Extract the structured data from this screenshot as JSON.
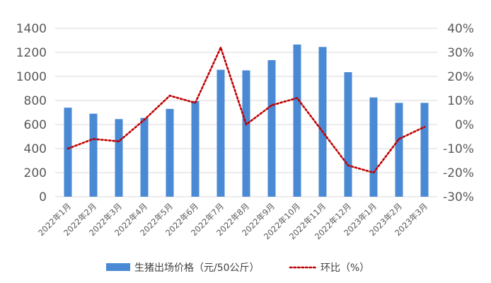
{
  "chart_data": {
    "type": "bar",
    "categories": [
      "2022年1月",
      "2022年2月",
      "2022年3月",
      "2022年4月",
      "2022年5月",
      "2022年6月",
      "2022年7月",
      "2022年8月",
      "2022年9月",
      "2022年10月",
      "2022年11月",
      "2022年12月",
      "2023年1月",
      "2023年2月",
      "2023年3月"
    ],
    "series": [
      {
        "name": "生猪出场价格（元/50公斤）",
        "type": "bar",
        "axis": "left",
        "color": "#4a89d3",
        "values": [
          740,
          690,
          645,
          655,
          730,
          795,
          1055,
          1050,
          1135,
          1265,
          1245,
          1035,
          825,
          780,
          780
        ]
      },
      {
        "name": "环比（%）",
        "type": "line",
        "style": "dotted",
        "axis": "right",
        "color": "#c00000",
        "values": [
          -10,
          -6,
          -7,
          2,
          12,
          9,
          32,
          0,
          8,
          11,
          -3,
          -17,
          -20,
          -6,
          -1
        ]
      }
    ],
    "y_left": {
      "min": 0,
      "max": 1400,
      "step": 200,
      "ticks": [
        "0",
        "200",
        "400",
        "600",
        "800",
        "1000",
        "1200",
        "1400"
      ]
    },
    "y_right": {
      "min": -30,
      "max": 40,
      "step": 10,
      "ticks": [
        "-30%",
        "-20%",
        "-10%",
        "0%",
        "10%",
        "20%",
        "30%",
        "40%"
      ]
    },
    "grid": true,
    "legend_position": "bottom"
  }
}
